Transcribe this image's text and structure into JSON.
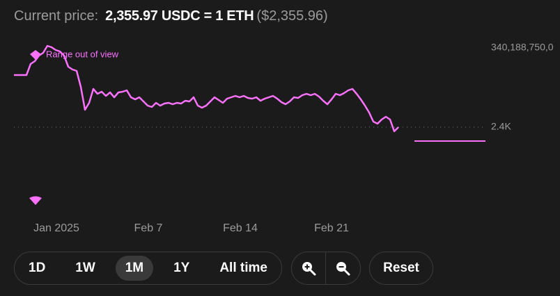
{
  "header": {
    "label": "Current price:",
    "price": "2,355.97 USDC = 1 ETH",
    "usd": "($2,355.96)"
  },
  "chart_data": {
    "type": "line",
    "color": "#fc72ff",
    "annotation": "Range out of view",
    "top_label": "340,188,750,0",
    "x_labels": [
      "Jan 2025",
      "Feb 7",
      "Feb 14",
      "Feb 21"
    ],
    "ylim": [
      1200,
      3800
    ],
    "yticks": [
      {
        "value": 2400,
        "label": "2.4K"
      }
    ],
    "values": [
      3150,
      3150,
      3150,
      3150,
      3310,
      3350,
      3430,
      3470,
      3570,
      3550,
      3510,
      3490,
      3430,
      3270,
      3230,
      3210,
      2980,
      2650,
      2750,
      2950,
      2880,
      2910,
      2850,
      2900,
      2830,
      2900,
      2910,
      2930,
      2830,
      2800,
      2830,
      2770,
      2710,
      2690,
      2750,
      2710,
      2740,
      2750,
      2730,
      2750,
      2740,
      2780,
      2770,
      2830,
      2710,
      2680,
      2710,
      2770,
      2830,
      2790,
      2750,
      2810,
      2830,
      2850,
      2830,
      2850,
      2820,
      2810,
      2830,
      2780,
      2810,
      2830,
      2850,
      2810,
      2760,
      2730,
      2770,
      2830,
      2820,
      2860,
      2880,
      2860,
      2880,
      2840,
      2780,
      2730,
      2800,
      2880,
      2860,
      2890,
      2930,
      2950,
      2880,
      2800,
      2710,
      2610,
      2480,
      2450,
      2510,
      2550,
      2510,
      2340,
      2400
    ]
  },
  "controls": {
    "periods": [
      "1D",
      "1W",
      "1M",
      "1Y",
      "All time"
    ],
    "active": "1M",
    "reset": "Reset"
  }
}
